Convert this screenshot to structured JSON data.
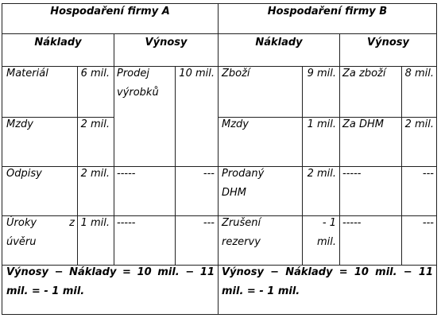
{
  "firmA": {
    "title": "Hospodaření firmy A",
    "naklady_label": "Náklady",
    "vynosy_label": "Výnosy",
    "rows": [
      {
        "naklad_label": "Materiál",
        "naklad_value": "6 mil.",
        "vynos_label": "Prodej výrobků",
        "vynos_value": "10 mil."
      },
      {
        "naklad_label": "Mzdy",
        "naklad_value": "2 mil."
      },
      {
        "naklad_label": "Odpisy",
        "naklad_value": "2 mil.",
        "vynos_label": "-----",
        "vynos_value": "---"
      },
      {
        "naklad_label": "Úroky z úvěru",
        "naklad_value": "1 mil.",
        "vynos_label": "-----",
        "vynos_value": "---"
      }
    ],
    "summary": "Výnosy − Náklady = 10 mil. − 11 mil. = - 1 mil."
  },
  "firmB": {
    "title": "Hospodaření firmy B",
    "naklady_label": "Náklady",
    "vynosy_label": "Výnosy",
    "rows": [
      {
        "naklad_label": "Zboží",
        "naklad_value": "9 mil.",
        "vynos_label": "Za zboží",
        "vynos_value": "8 mil."
      },
      {
        "naklad_label": "Mzdy",
        "naklad_value": "1 mil.",
        "vynos_label": "Za DHM",
        "vynos_value": "2 mil."
      },
      {
        "naklad_label": "Prodaný DHM",
        "naklad_value": "2 mil.",
        "vynos_label": "-----",
        "vynos_value": "---"
      },
      {
        "naklad_label": "Zrušení rezervy",
        "naklad_value": "- 1 mil.",
        "vynos_label": "-----",
        "vynos_value": "---"
      }
    ],
    "summary": "Výnosy − Náklady = 10 mil. − 11 mil. = - 1 mil."
  }
}
